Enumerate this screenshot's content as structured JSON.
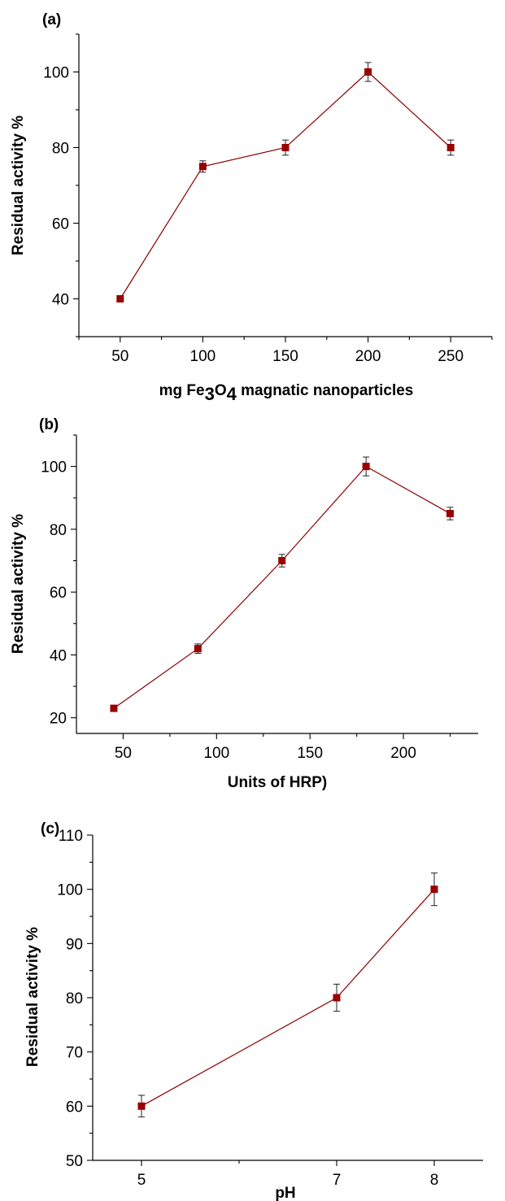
{
  "colors": {
    "series": "#8b0000",
    "marker": "#990000",
    "axis": "#000000"
  },
  "chart_data": [
    {
      "type": "line",
      "panel_label": "(a)",
      "title": "",
      "xlabel": "",
      "xlabel_parts": {
        "prefix": "mg Fe",
        "sub1": "3",
        "mid": "O",
        "sub2": "4",
        "suffix": " magnatic nanoparticles"
      },
      "ylabel": "Residual activity %",
      "xlim": [
        25,
        275
      ],
      "ylim": [
        30,
        110
      ],
      "xticks": [
        "50",
        "100",
        "150",
        "200",
        "250"
      ],
      "xtick_values": [
        50,
        100,
        150,
        200,
        250
      ],
      "xminor_ticks": [
        25,
        75,
        125,
        175,
        225,
        275
      ],
      "yticks": [
        "40",
        "60",
        "80",
        "100"
      ],
      "ytick_values": [
        40,
        60,
        80,
        100
      ],
      "yminor_ticks": [
        30,
        50,
        70,
        90,
        110
      ],
      "grid": false,
      "series": [
        {
          "x": [
            50,
            100,
            150,
            200,
            250
          ],
          "values": [
            40,
            75,
            80,
            100,
            80
          ],
          "errors": [
            0.8,
            1.5,
            2,
            2.5,
            2
          ]
        }
      ]
    },
    {
      "type": "line",
      "panel_label": "(b)",
      "title": "",
      "xlabel": "Units of HRP)",
      "ylabel": "Residual activity %",
      "xlim": [
        25,
        240
      ],
      "ylim": [
        15,
        110
      ],
      "xticks": [
        "50",
        "100",
        "150",
        "200"
      ],
      "xtick_values": [
        50,
        100,
        150,
        200
      ],
      "xminor_ticks": [
        75,
        125,
        175,
        225
      ],
      "yticks": [
        "20",
        "40",
        "60",
        "80",
        "100"
      ],
      "ytick_values": [
        20,
        40,
        60,
        80,
        100
      ],
      "yminor_ticks": [
        30,
        50,
        70,
        90,
        110
      ],
      "grid": false,
      "series": [
        {
          "x": [
            45,
            90,
            135,
            180,
            225
          ],
          "values": [
            23,
            42,
            70,
            100,
            85
          ],
          "errors": [
            0.8,
            1.5,
            2,
            3,
            2
          ]
        }
      ]
    },
    {
      "type": "line",
      "panel_label": "(c)",
      "title": "",
      "xlabel": "pH",
      "ylabel": "Residual activity %",
      "xlim": [
        4.5,
        8.5
      ],
      "ylim": [
        50,
        110
      ],
      "xticks": [
        "5",
        "7",
        "8"
      ],
      "xtick_values": [
        5,
        7,
        8
      ],
      "xminor_ticks": [
        6
      ],
      "yticks": [
        "50",
        "60",
        "70",
        "80",
        "90",
        "100",
        "110"
      ],
      "ytick_values": [
        50,
        60,
        70,
        80,
        90,
        100,
        110
      ],
      "yminor_ticks": [
        55,
        65,
        75,
        85,
        95,
        105
      ],
      "grid": false,
      "series": [
        {
          "x": [
            5,
            7,
            8
          ],
          "values": [
            60,
            80,
            100
          ],
          "errors": [
            2,
            2.5,
            3
          ]
        }
      ]
    }
  ]
}
